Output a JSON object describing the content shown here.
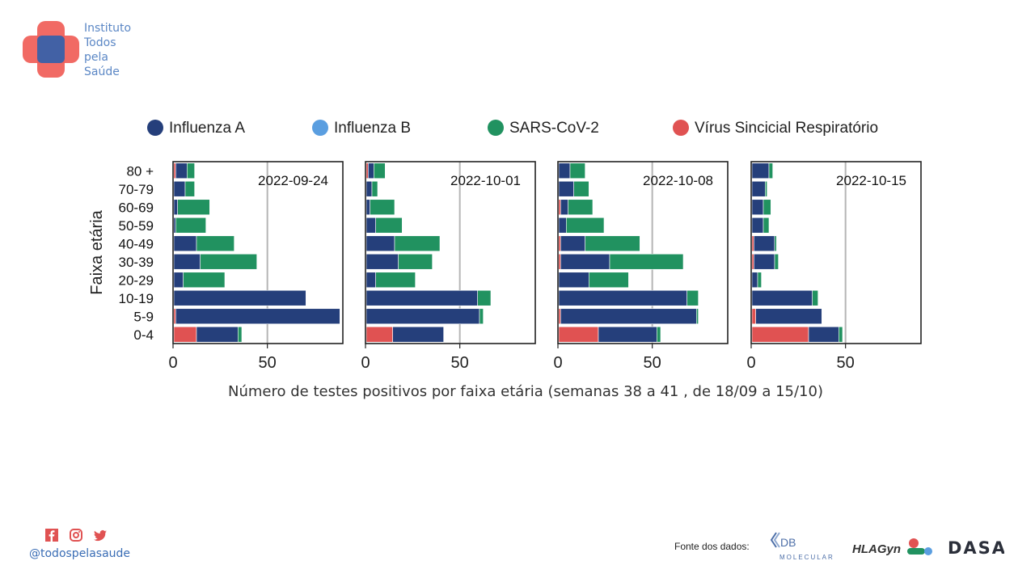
{
  "brand": {
    "logo_lines": [
      "Instituto",
      "Todos",
      "pela",
      "Saúde"
    ],
    "colors": {
      "cross_red": "#f05d57",
      "cross_blue": "#2f62ae"
    }
  },
  "footer": {
    "social_icons": [
      "facebook-icon",
      "instagram-icon",
      "twitter-icon"
    ],
    "handle": "@todospelasaude",
    "source_label": "Fonte dos dados:",
    "partners": [
      "DB MOLECULAR",
      "HLAGyn",
      "DASA"
    ]
  },
  "chart_data": {
    "type": "bar",
    "orientation": "horizontal",
    "stacked": true,
    "ylabel": "Faixa etária",
    "xlabel": "Número de testes positivos por faixa etária (semanas 38 a 41 , de 18/09 a 15/10)",
    "categories": [
      "0-4",
      "5-9",
      "10-19",
      "20-29",
      "30-39",
      "40-49",
      "50-59",
      "60-69",
      "70-79",
      "80 +"
    ],
    "xlim": [
      0,
      90
    ],
    "xticks": [
      0,
      50
    ],
    "reference_line": 50,
    "legend_position": "top",
    "series": [
      {
        "name": "Vírus Sincicial Respiratório",
        "color": "#e05252"
      },
      {
        "name": "Influenza A",
        "color": "#253f7b"
      },
      {
        "name": "Influenza B",
        "color": "#5a9ee0"
      },
      {
        "name": "SARS-CoV-2",
        "color": "#219260"
      }
    ],
    "legend_order": [
      "Influenza A",
      "Influenza B",
      "SARS-CoV-2",
      "Vírus Sincicial Respiratório"
    ],
    "panels": [
      {
        "label": "2022-09-24",
        "values": {
          "Vírus Sincicial Respiratório": [
            12,
            1,
            0,
            0,
            0,
            0,
            0,
            0,
            0,
            1
          ],
          "Influenza A": [
            22,
            87,
            70,
            5,
            14,
            12,
            1,
            2,
            6,
            6
          ],
          "Influenza B": [
            0,
            0,
            0,
            0,
            0,
            0,
            0,
            0,
            0,
            0
          ],
          "SARS-CoV-2": [
            2,
            0,
            0,
            22,
            30,
            20,
            16,
            17,
            5,
            4
          ]
        }
      },
      {
        "label": "2022-10-01",
        "values": {
          "Vírus Sincicial Respiratório": [
            14,
            0,
            0,
            0,
            0,
            0,
            0,
            0,
            0,
            1
          ],
          "Influenza A": [
            27,
            60,
            59,
            5,
            17,
            15,
            5,
            2,
            3,
            3
          ],
          "Influenza B": [
            0,
            0,
            0,
            0,
            0,
            0,
            0,
            0,
            0,
            0
          ],
          "SARS-CoV-2": [
            0,
            2,
            7,
            21,
            18,
            24,
            14,
            13,
            3,
            6
          ]
        }
      },
      {
        "label": "2022-10-08",
        "values": {
          "Vírus Sincicial Respiratório": [
            21,
            1,
            0,
            0,
            1,
            1,
            0,
            1,
            0,
            0
          ],
          "Influenza A": [
            31,
            72,
            68,
            16,
            26,
            13,
            4,
            4,
            8,
            6
          ],
          "Influenza B": [
            0,
            0,
            0,
            0,
            0,
            0,
            0,
            0,
            0,
            0
          ],
          "SARS-CoV-2": [
            2,
            1,
            6,
            21,
            39,
            29,
            20,
            13,
            8,
            8
          ]
        }
      },
      {
        "label": "2022-10-15",
        "values": {
          "Vírus Sincicial Respiratório": [
            30,
            2,
            0,
            0,
            1,
            1,
            0,
            0,
            0,
            0
          ],
          "Influenza A": [
            16,
            35,
            32,
            3,
            11,
            11,
            6,
            6,
            7,
            9
          ],
          "Influenza B": [
            0,
            0,
            0,
            0,
            0,
            0,
            0,
            0,
            0,
            0
          ],
          "SARS-CoV-2": [
            2,
            0,
            3,
            2,
            2,
            1,
            3,
            4,
            1,
            2
          ]
        }
      }
    ]
  }
}
